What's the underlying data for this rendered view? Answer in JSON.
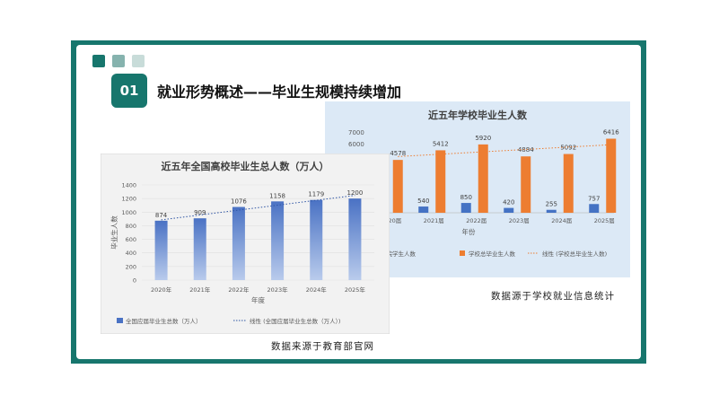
{
  "slide": {
    "number": "01",
    "heading": "就业形势概述——毕业生规模持续增加",
    "deco_colors": [
      "#17766d",
      "#86b3ae",
      "#c8dcd9"
    ],
    "source_right": "数据源于学校就业信息统计",
    "source_left": "数据来源于教育部官网"
  },
  "chart_data": [
    {
      "type": "bar+line",
      "title": "近五年学校毕业生人数",
      "xlabel": "年份",
      "ylabel": "",
      "ylim": [
        0,
        7000
      ],
      "yticks": [
        "7000",
        "6000"
      ],
      "categories": [
        "2020届",
        "2021届",
        "2022届",
        "2023届",
        "2024届",
        "2025届"
      ],
      "series": [
        {
          "name": "学院学生人数",
          "color": "#4472c4",
          "values": [
            null,
            540,
            850,
            420,
            255,
            757
          ]
        },
        {
          "name": "学校总毕业生人数",
          "color": "#ed7d31",
          "values": [
            4578,
            5412,
            5920,
            4884,
            5092,
            6416
          ]
        },
        {
          "name": "线性 (学校总毕业生人数)",
          "color": "#ed7d31",
          "style": "dotted-trendline"
        }
      ],
      "legend_position": "bottom",
      "background": "#dce9f6"
    },
    {
      "type": "bar+line",
      "title": "近五年全国高校毕业生总人数（万人）",
      "xlabel": "年度",
      "ylabel": "毕业生人数",
      "ylim": [
        0,
        1400
      ],
      "yticks": [
        "0",
        "200",
        "400",
        "600",
        "800",
        "1000",
        "1200",
        "1400"
      ],
      "categories": [
        "2020年",
        "2021年",
        "2022年",
        "2023年",
        "2024年",
        "2025年"
      ],
      "series": [
        {
          "name": "全国应届毕业生总数（万人）",
          "color": "#4a72c4",
          "values": [
            874,
            909,
            1076,
            1158,
            1179,
            1200
          ]
        },
        {
          "name": "线性 (全国应届毕业生总数（万人）)",
          "color": "#4a72c4",
          "style": "dotted-trendline"
        }
      ],
      "legend_position": "bottom",
      "background": "#f2f2f2"
    }
  ]
}
